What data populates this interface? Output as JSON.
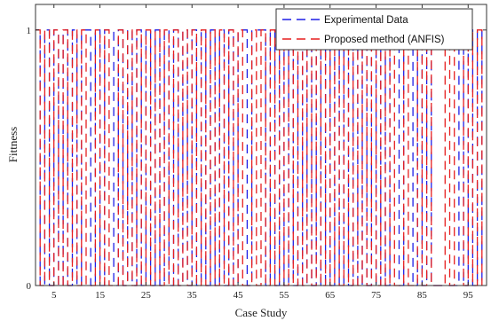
{
  "chart_data": {
    "type": "line",
    "xlabel": "Case Study",
    "ylabel": "Fittness",
    "xlim": [
      1,
      99
    ],
    "ylim": [
      0,
      1.1
    ],
    "xticks": [
      5,
      15,
      25,
      35,
      45,
      55,
      65,
      75,
      85,
      95
    ],
    "xtick_labels": [
      "5",
      "15",
      "25",
      "35",
      "45",
      "55",
      "65",
      "75",
      "85",
      "95"
    ],
    "yticks": [
      0,
      1
    ],
    "ytick_labels": [
      "0",
      "1"
    ],
    "grid": false,
    "legend_position": "top-right",
    "series": [
      {
        "name": "Experimental Data",
        "color": "#1f1fe6",
        "style": "dashed",
        "x": [
          1,
          2,
          3,
          4,
          5,
          6,
          7,
          8,
          9,
          10,
          11,
          12,
          13,
          14,
          15,
          16,
          17,
          18,
          19,
          20,
          21,
          22,
          23,
          24,
          25,
          26,
          27,
          28,
          29,
          30,
          31,
          32,
          33,
          34,
          35,
          36,
          37,
          38,
          39,
          40,
          41,
          42,
          43,
          44,
          45,
          46,
          47,
          48,
          49,
          50,
          51,
          52,
          53,
          54,
          55,
          56,
          57,
          58,
          59,
          60,
          61,
          62,
          63,
          64,
          65,
          66,
          67,
          68,
          69,
          70,
          71,
          72,
          73,
          74,
          75,
          76,
          77,
          78,
          79,
          80,
          81,
          82,
          83,
          84,
          85,
          86,
          87,
          88,
          89,
          90,
          91,
          92,
          93,
          94,
          95,
          96,
          97,
          98
        ],
        "y": [
          1,
          0,
          1,
          0,
          1,
          0,
          1,
          0,
          1,
          0,
          1,
          1,
          0,
          1,
          0,
          1,
          1,
          0,
          1,
          0,
          1,
          0,
          1,
          0,
          1,
          0,
          1,
          0,
          1,
          0,
          1,
          0,
          1,
          0,
          1,
          0,
          1,
          0,
          1,
          0,
          1,
          0,
          1,
          0,
          1,
          1,
          0,
          1,
          1,
          1,
          0,
          1,
          0,
          1,
          0,
          1,
          0,
          1,
          0,
          1,
          0,
          1,
          0,
          1,
          0,
          1,
          0,
          1,
          0,
          1,
          0,
          1,
          0,
          1,
          0,
          1,
          0,
          1,
          1,
          0,
          1,
          1,
          0,
          1,
          0,
          1,
          0,
          0,
          0,
          0,
          0,
          0,
          1,
          0,
          1,
          0,
          1,
          0
        ]
      },
      {
        "name": "Proposed method (ANFIS)",
        "color": "#e61f1f",
        "style": "dashed",
        "x": [
          1,
          2,
          3,
          4,
          5,
          6,
          7,
          8,
          9,
          10,
          11,
          12,
          13,
          14,
          15,
          16,
          17,
          18,
          19,
          20,
          21,
          22,
          23,
          24,
          25,
          26,
          27,
          28,
          29,
          30,
          31,
          32,
          33,
          34,
          35,
          36,
          37,
          38,
          39,
          40,
          41,
          42,
          43,
          44,
          45,
          46,
          47,
          48,
          49,
          50,
          51,
          52,
          53,
          54,
          55,
          56,
          57,
          58,
          59,
          60,
          61,
          62,
          63,
          64,
          65,
          66,
          67,
          68,
          69,
          70,
          71,
          72,
          73,
          74,
          75,
          76,
          77,
          78,
          79,
          80,
          81,
          82,
          83,
          84,
          85,
          86,
          87,
          88,
          89,
          90,
          91,
          92,
          93,
          94,
          95,
          96,
          97,
          98
        ],
        "y": [
          1,
          0,
          1,
          0,
          1,
          0,
          1,
          0,
          1,
          0,
          1,
          0,
          0,
          1,
          0,
          1,
          0,
          0,
          1,
          0,
          1,
          0,
          1,
          0,
          1,
          0,
          1,
          0,
          1,
          0,
          1,
          0,
          1,
          0,
          1,
          0,
          1,
          0,
          1,
          0,
          1,
          0,
          1,
          0,
          1,
          0,
          0,
          1,
          0,
          1,
          0,
          1,
          0,
          1,
          0,
          1,
          0,
          1,
          0,
          1,
          0,
          1,
          0,
          1,
          0,
          1,
          0,
          1,
          0,
          1,
          0,
          1,
          0,
          1,
          0,
          1,
          0,
          1,
          0,
          0,
          1,
          0,
          0,
          1,
          0,
          1,
          0,
          0,
          0,
          1,
          0,
          1,
          1,
          0,
          1,
          0,
          1,
          0
        ]
      }
    ]
  }
}
